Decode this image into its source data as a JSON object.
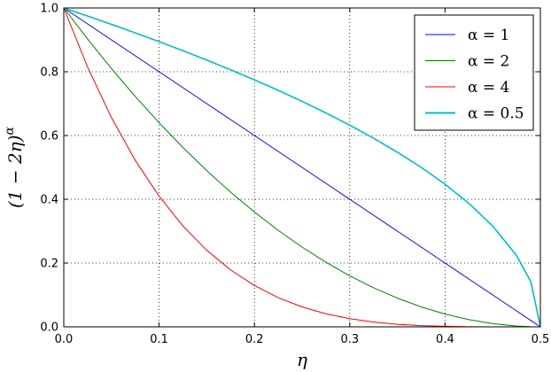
{
  "chart_data": {
    "type": "line",
    "xlabel": "η",
    "ylabel": "(1 − 2η)^α",
    "ylabel_base": "(1 − 2η)",
    "ylabel_exp": "α",
    "xlim": [
      0.0,
      0.5
    ],
    "ylim": [
      0.0,
      1.0
    ],
    "grid": true,
    "grid_style": "dotted",
    "legend_position": "top-right",
    "x_ticks": [
      0.0,
      0.1,
      0.2,
      0.3,
      0.4,
      0.5
    ],
    "x_tick_labels": [
      "0.0",
      "0.1",
      "0.2",
      "0.3",
      "0.4",
      "0.5"
    ],
    "y_ticks": [
      0.0,
      0.2,
      0.4,
      0.6,
      0.8,
      1.0
    ],
    "y_tick_labels": [
      "0.0",
      "0.2",
      "0.4",
      "0.6",
      "0.8",
      "1.0"
    ],
    "x": [
      0.0,
      0.025,
      0.05,
      0.075,
      0.1,
      0.125,
      0.15,
      0.175,
      0.2,
      0.225,
      0.25,
      0.275,
      0.3,
      0.325,
      0.35,
      0.375,
      0.4,
      0.425,
      0.45,
      0.475,
      0.49,
      0.5
    ],
    "series": [
      {
        "name": "α = 1",
        "color": "#0000ff",
        "stroke": 1,
        "values": [
          1.0,
          0.95,
          0.9,
          0.85,
          0.8,
          0.75,
          0.7,
          0.65,
          0.6,
          0.55,
          0.5,
          0.45,
          0.4,
          0.35,
          0.3,
          0.25,
          0.2,
          0.15,
          0.1,
          0.05,
          0.02,
          0.0
        ]
      },
      {
        "name": "α = 2",
        "color": "#008000",
        "stroke": 1,
        "values": [
          1.0,
          0.9025,
          0.81,
          0.7225,
          0.64,
          0.5625,
          0.49,
          0.4225,
          0.36,
          0.3025,
          0.25,
          0.2025,
          0.16,
          0.1225,
          0.09,
          0.0625,
          0.04,
          0.0225,
          0.01,
          0.0025,
          0.0004,
          0.0
        ]
      },
      {
        "name": "α = 4",
        "color": "#ff0000",
        "stroke": 1,
        "values": [
          1.0,
          0.8145,
          0.6561,
          0.522,
          0.4096,
          0.3164,
          0.2401,
          0.1785,
          0.1296,
          0.0915,
          0.0625,
          0.041,
          0.0256,
          0.015,
          0.0081,
          0.0039,
          0.0016,
          0.0005,
          0.0001,
          0.0,
          0.0,
          0.0
        ]
      },
      {
        "name": "α = 0.5",
        "color": "#00bfbf",
        "stroke": 1.6,
        "values": [
          1.0,
          0.9747,
          0.9487,
          0.922,
          0.8944,
          0.866,
          0.8367,
          0.8062,
          0.7746,
          0.7416,
          0.7071,
          0.6708,
          0.6325,
          0.5916,
          0.5477,
          0.5,
          0.4472,
          0.3873,
          0.3162,
          0.2236,
          0.1414,
          0.0
        ]
      }
    ],
    "legend": [
      {
        "label": "α = 1",
        "color": "#0000ff",
        "stroke": 1
      },
      {
        "label": "α = 2",
        "color": "#008000",
        "stroke": 1
      },
      {
        "label": "α = 4",
        "color": "#ff0000",
        "stroke": 1
      },
      {
        "label": "α = 0.5",
        "color": "#00bfbf",
        "stroke": 2
      }
    ]
  }
}
